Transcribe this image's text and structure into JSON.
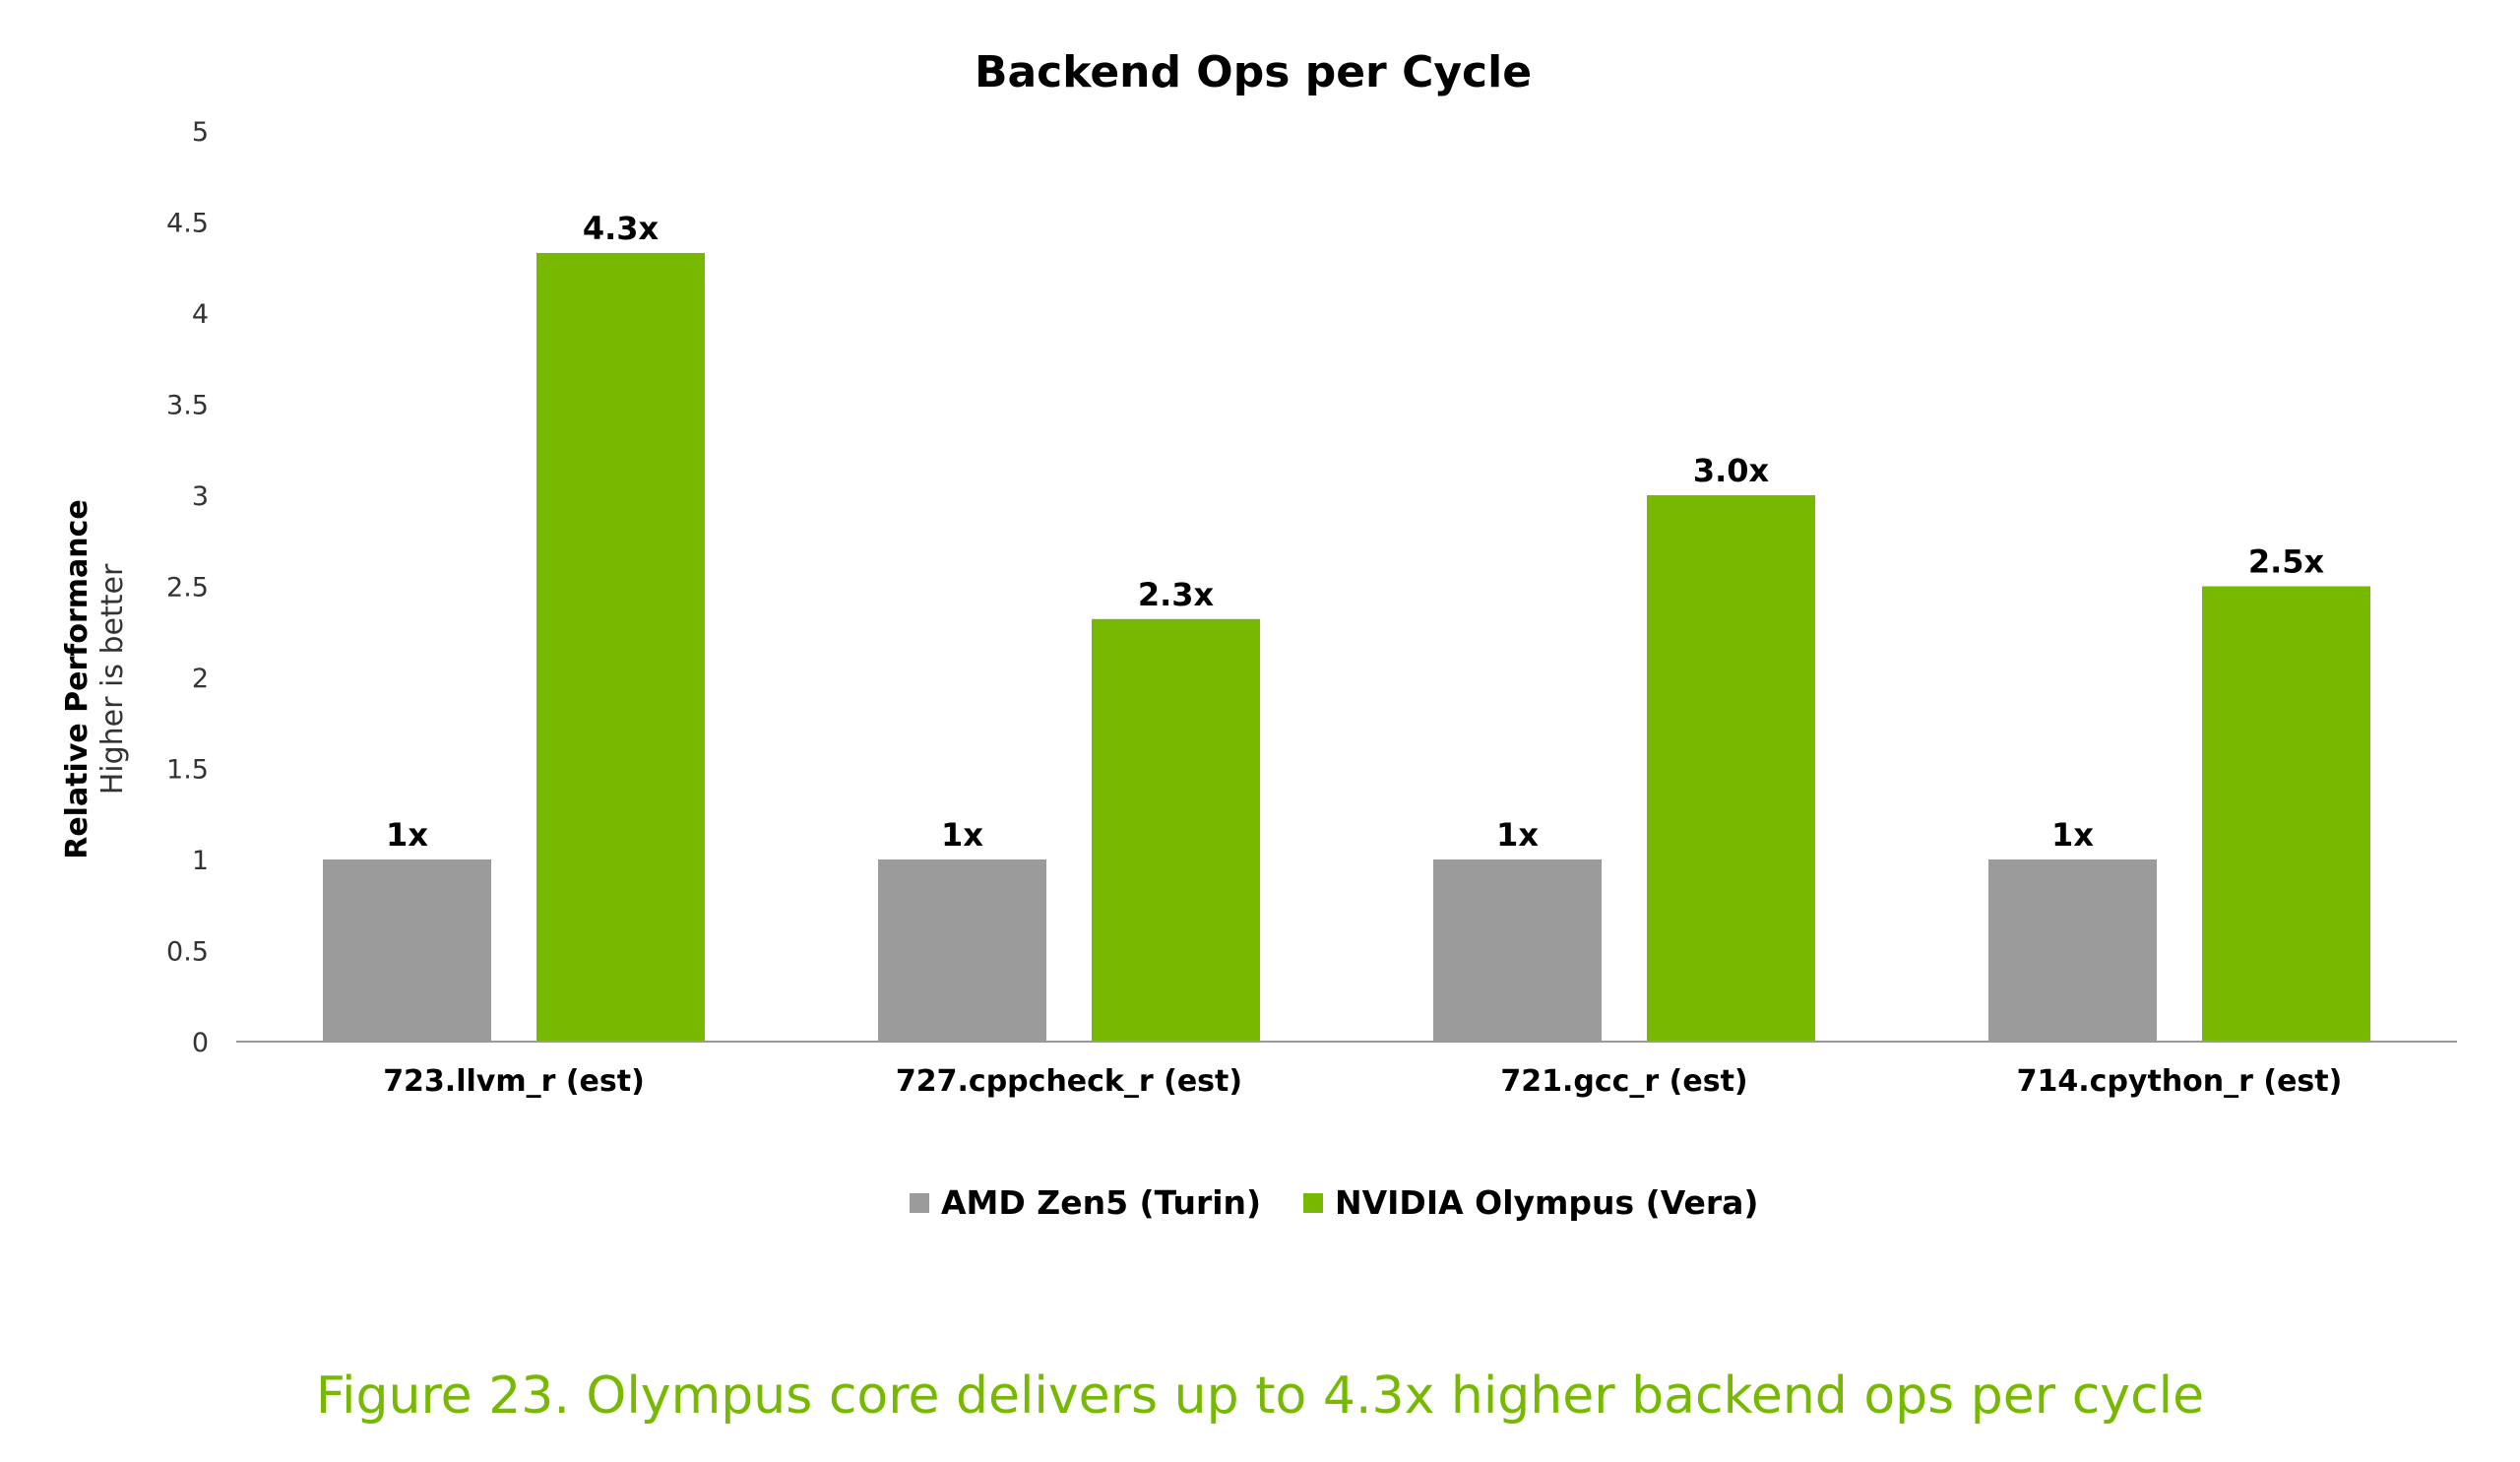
{
  "chart_data": {
    "type": "bar",
    "title": "Backend Ops per Cycle",
    "ylabel": "Relative Performance",
    "ylabel_sub": "Higher is better",
    "xlabel": "",
    "ylim": [
      0,
      5
    ],
    "yticks": [
      "0",
      "0.5",
      "1",
      "1.5",
      "2",
      "2.5",
      "3",
      "3.5",
      "4",
      "4.5",
      "5"
    ],
    "grid": false,
    "legend_position": "bottom",
    "categories": [
      "723.llvm_r (est)",
      "727.cppcheck_r (est)",
      "721.gcc_r (est)",
      "714.cpython_r (est)"
    ],
    "series": [
      {
        "name": "AMD Zen5 (Turin)",
        "color": "#9b9b9b",
        "values": [
          1,
          1,
          1,
          1
        ],
        "labels": [
          "1x",
          "1x",
          "1x",
          "1x"
        ]
      },
      {
        "name": "NVIDIA Olympus (Vera)",
        "color": "#76b900",
        "values": [
          4.33,
          2.32,
          3.0,
          2.5
        ],
        "labels": [
          "4.3x",
          "2.3x",
          "3.0x",
          "2.5x"
        ]
      }
    ]
  },
  "caption": "Figure 23. Olympus core delivers up to 4.3x higher backend ops per cycle"
}
